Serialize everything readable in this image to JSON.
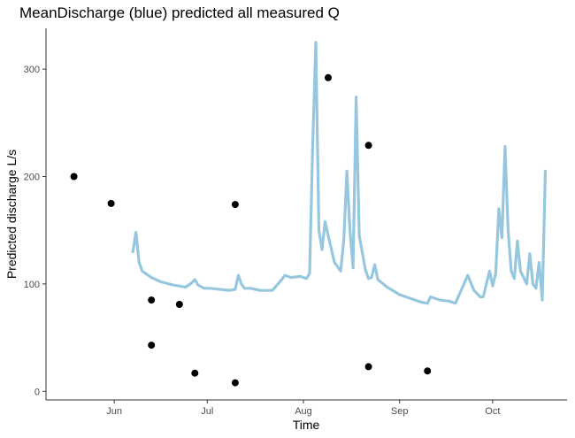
{
  "colors": {
    "predicted_line": "#96c7df",
    "measured_point": "#000000",
    "axis": "#333333",
    "tick_text": "#4d4d4d",
    "background": "#ffffff"
  },
  "chart_data": {
    "type": "line",
    "title": "MeanDischarge (blue) predicted all measured Q",
    "xlabel": "Time",
    "ylabel": "Predicted discharge L/s",
    "xlim": [
      "2019-05-10",
      "2019-10-25"
    ],
    "ylim": [
      -8,
      338
    ],
    "grid": false,
    "x_ticks": [
      {
        "date": "2019-06-01",
        "label": "Jun"
      },
      {
        "date": "2019-07-01",
        "label": "Jul"
      },
      {
        "date": "2019-08-01",
        "label": "Aug"
      },
      {
        "date": "2019-09-01",
        "label": "Sep"
      },
      {
        "date": "2019-10-01",
        "label": "Oct"
      }
    ],
    "y_ticks": [
      0,
      100,
      200,
      300
    ],
    "series": [
      {
        "type": "line",
        "x": [
          "2019-06-07",
          "2019-06-08",
          "2019-06-09",
          "2019-06-10",
          "2019-06-11",
          "2019-06-13",
          "2019-06-16",
          "2019-06-20",
          "2019-06-24",
          "2019-06-26",
          "2019-06-27",
          "2019-06-28",
          "2019-06-30",
          "2019-07-02",
          "2019-07-05",
          "2019-07-08",
          "2019-07-10",
          "2019-07-11",
          "2019-07-12",
          "2019-07-13",
          "2019-07-15",
          "2019-07-18",
          "2019-07-22",
          "2019-07-25",
          "2019-07-26",
          "2019-07-28",
          "2019-07-31",
          "2019-08-02",
          "2019-08-03",
          "2019-08-04",
          "2019-08-05",
          "2019-08-06",
          "2019-08-07",
          "2019-08-08",
          "2019-08-09",
          "2019-08-11",
          "2019-08-13",
          "2019-08-14",
          "2019-08-15",
          "2019-08-16",
          "2019-08-17",
          "2019-08-18",
          "2019-08-19",
          "2019-08-21",
          "2019-08-22",
          "2019-08-23",
          "2019-08-24",
          "2019-08-25",
          "2019-08-28",
          "2019-09-01",
          "2019-09-05",
          "2019-09-08",
          "2019-09-10",
          "2019-09-11",
          "2019-09-14",
          "2019-09-17",
          "2019-09-19",
          "2019-09-21",
          "2019-09-23",
          "2019-09-25",
          "2019-09-27",
          "2019-09-28",
          "2019-09-29",
          "2019-09-30",
          "2019-10-01",
          "2019-10-02",
          "2019-10-03",
          "2019-10-04",
          "2019-10-05",
          "2019-10-06",
          "2019-10-07",
          "2019-10-08",
          "2019-10-09",
          "2019-10-10",
          "2019-10-12",
          "2019-10-13",
          "2019-10-14",
          "2019-10-15",
          "2019-10-16",
          "2019-10-17",
          "2019-10-18"
        ],
        "values": [
          130,
          148,
          120,
          112,
          110,
          106,
          102,
          99,
          97,
          101,
          104,
          99,
          96,
          96,
          95,
          94,
          95,
          108,
          100,
          96,
          96,
          94,
          94,
          104,
          108,
          106,
          107,
          105,
          110,
          230,
          325,
          150,
          132,
          158,
          145,
          120,
          112,
          140,
          205,
          150,
          115,
          274,
          145,
          113,
          105,
          106,
          118,
          104,
          97,
          90,
          86,
          83,
          82,
          88,
          85,
          84,
          82,
          95,
          108,
          94,
          88,
          88,
          100,
          112,
          98,
          110,
          170,
          143,
          228,
          150,
          112,
          105,
          140,
          112,
          100,
          128,
          100,
          96,
          120,
          85,
          205
        ]
      },
      {
        "type": "scatter",
        "x": [
          "2019-05-19",
          "2019-05-31",
          "2019-06-13",
          "2019-06-13",
          "2019-06-22",
          "2019-06-27",
          "2019-07-10",
          "2019-07-10",
          "2019-08-09",
          "2019-08-22",
          "2019-08-22",
          "2019-09-10"
        ],
        "values": [
          200,
          175,
          85,
          43,
          81,
          17,
          174,
          8,
          292,
          229,
          23,
          19
        ]
      }
    ]
  }
}
